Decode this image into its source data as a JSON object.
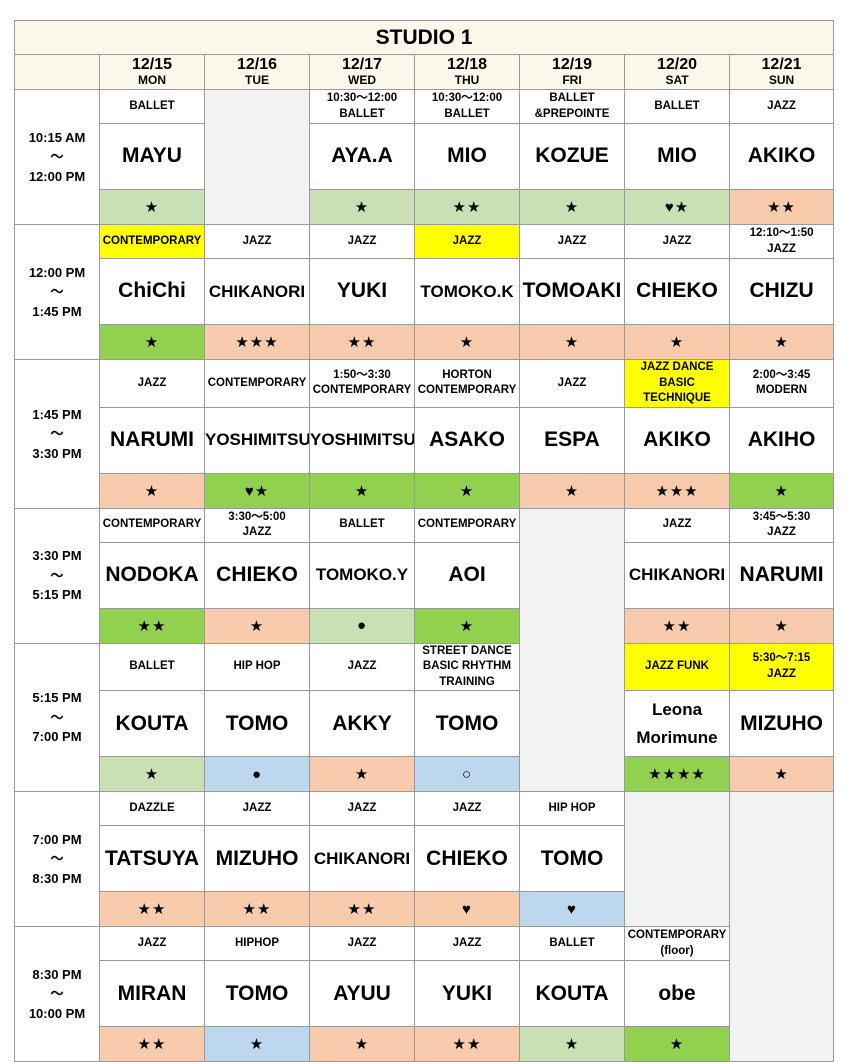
{
  "title": "STUDIO 1",
  "days": [
    {
      "date": "12/15",
      "dow": "MON"
    },
    {
      "date": "12/16",
      "dow": "TUE"
    },
    {
      "date": "12/17",
      "dow": "WED"
    },
    {
      "date": "12/18",
      "dow": "THU"
    },
    {
      "date": "12/19",
      "dow": "FRI"
    },
    {
      "date": "12/20",
      "dow": "SAT"
    },
    {
      "date": "12/21",
      "dow": "SUN"
    }
  ],
  "slots": [
    {
      "time": [
        "10:15 AM",
        "～",
        "12:00 PM"
      ],
      "classes": [
        {
          "genre": [
            "BALLET"
          ],
          "instructor": "MAYU",
          "level": "★",
          "level_color": "g"
        },
        null,
        {
          "genre": [
            "10:30～12:00",
            "BALLET"
          ],
          "instructor": "AYA.A",
          "level": "★",
          "level_color": "g"
        },
        {
          "genre": [
            "10:30～12:00",
            "BALLET"
          ],
          "instructor": "MIO",
          "level": "★★",
          "level_color": "g"
        },
        {
          "genre": [
            "BALLET",
            "&PREPOINTE"
          ],
          "instructor": "KOZUE",
          "level": "★",
          "level_color": "g"
        },
        {
          "genre": [
            "BALLET"
          ],
          "instructor": "MIO",
          "level": "♥★",
          "level_color": "g"
        },
        {
          "genre": [
            "JAZZ"
          ],
          "instructor": "AKIKO",
          "level": "★★",
          "level_color": "p"
        }
      ]
    },
    {
      "time": [
        "12:00 PM",
        "～",
        "1:45 PM"
      ],
      "classes": [
        {
          "genre": [
            "CONTEMPORARY"
          ],
          "genre_highlight": true,
          "instructor": "ChiChi",
          "level": "★",
          "level_color": "G"
        },
        {
          "genre": [
            "JAZZ"
          ],
          "instructor": "CHIKANORI",
          "inst_size": "small",
          "level": "★★★",
          "level_color": "p"
        },
        {
          "genre": [
            "JAZZ"
          ],
          "instructor": "YUKI",
          "level": "★★",
          "level_color": "p"
        },
        {
          "genre": [
            "JAZZ"
          ],
          "genre_highlight": true,
          "instructor": "TOMOKO.K",
          "inst_size": "small",
          "level": "★",
          "level_color": "p"
        },
        {
          "genre": [
            "JAZZ"
          ],
          "instructor": "TOMOAKI",
          "level": "★",
          "level_color": "p"
        },
        {
          "genre": [
            "JAZZ"
          ],
          "instructor": "CHIEKO",
          "level": "★",
          "level_color": "p"
        },
        {
          "genre": [
            "12:10～1:50",
            "JAZZ"
          ],
          "instructor": "CHIZU",
          "level": "★",
          "level_color": "p"
        }
      ]
    },
    {
      "time": [
        "1:45 PM",
        "～",
        "3:30 PM"
      ],
      "classes": [
        {
          "genre": [
            "JAZZ"
          ],
          "instructor": "NARUMI",
          "level": "★",
          "level_color": "p"
        },
        {
          "genre": [
            "CONTEMPORARY"
          ],
          "instructor": "YOSHIMITSU",
          "inst_size": "small",
          "level": "♥★",
          "level_color": "G"
        },
        {
          "genre": [
            "1:50～3:30",
            "CONTEMPORARY"
          ],
          "instructor": "YOSHIMITSU",
          "inst_size": "small",
          "level": "★",
          "level_color": "G"
        },
        {
          "genre": [
            "HORTON",
            "CONTEMPORARY"
          ],
          "instructor": "ASAKO",
          "level": "★",
          "level_color": "G"
        },
        {
          "genre": [
            "JAZZ"
          ],
          "instructor": "ESPA",
          "level": "★",
          "level_color": "p"
        },
        {
          "genre": [
            "JAZZ DANCE",
            "BASIC TECHNIQUE"
          ],
          "genre_highlight": true,
          "instructor": "AKIKO",
          "level": "★★★",
          "level_color": "p"
        },
        {
          "genre": [
            "2:00～3:45",
            "MODERN"
          ],
          "instructor": "AKIHO",
          "level": "★",
          "level_color": "G"
        }
      ]
    },
    {
      "time": [
        "3:30 PM",
        "～",
        "5:15 PM"
      ],
      "classes": [
        {
          "genre": [
            "CONTEMPORARY"
          ],
          "instructor": "NODOKA",
          "level": "★★",
          "level_color": "G"
        },
        {
          "genre": [
            "3:30～5:00",
            "JAZZ"
          ],
          "instructor": "CHIEKO",
          "level": "★",
          "level_color": "p"
        },
        {
          "genre": [
            "BALLET"
          ],
          "instructor": "TOMOKO.Y",
          "inst_size": "small",
          "level": "●",
          "level_color": "g"
        },
        {
          "genre": [
            "CONTEMPORARY"
          ],
          "instructor": "AOI",
          "level": "★",
          "level_color": "G"
        },
        null,
        {
          "genre": [
            "JAZZ"
          ],
          "instructor": "CHIKANORI",
          "inst_size": "small",
          "level": "★★",
          "level_color": "p"
        },
        {
          "genre": [
            "3:45～5:30",
            "JAZZ"
          ],
          "instructor": "NARUMI",
          "level": "★",
          "level_color": "p"
        }
      ]
    },
    {
      "time": [
        "5:15 PM",
        "～",
        "7:00 PM"
      ],
      "classes": [
        {
          "genre": [
            "BALLET"
          ],
          "instructor": "KOUTA",
          "level": "★",
          "level_color": "g"
        },
        {
          "genre": [
            "HIP HOP"
          ],
          "instructor": "TOMO",
          "level": "●",
          "level_color": "b"
        },
        {
          "genre": [
            "JAZZ"
          ],
          "instructor": "AKKY",
          "level": "★",
          "level_color": "p"
        },
        {
          "genre": [
            "STREET DANCE",
            "BASIC RHYTHM",
            "TRAINING"
          ],
          "instructor": "TOMO",
          "level": "○",
          "level_color": "b"
        },
        null,
        {
          "genre": [
            "JAZZ FUNK"
          ],
          "genre_highlight": true,
          "instructor_lines": [
            "Leona",
            "Morimune"
          ],
          "level": "★★★★",
          "level_color": "G"
        },
        {
          "genre": [
            "5:30～7:15",
            "JAZZ"
          ],
          "genre_highlight": true,
          "instructor": "MIZUHO",
          "level": "★",
          "level_color": "p"
        }
      ]
    },
    {
      "time": [
        "7:00 PM",
        "～",
        "8:30 PM"
      ],
      "classes": [
        {
          "genre": [
            "DAZZLE"
          ],
          "instructor": "TATSUYA",
          "level": "★★",
          "level_color": "p"
        },
        {
          "genre": [
            "JAZZ"
          ],
          "instructor": "MIZUHO",
          "level": "★★",
          "level_color": "p"
        },
        {
          "genre": [
            "JAZZ"
          ],
          "instructor": "CHIKANORI",
          "inst_size": "small",
          "level": "★★",
          "level_color": "p"
        },
        {
          "genre": [
            "JAZZ"
          ],
          "instructor": "CHIEKO",
          "level": "♥",
          "level_color": "p"
        },
        {
          "genre": [
            "HIP HOP"
          ],
          "instructor": "TOMO",
          "level": "♥",
          "level_color": "b"
        },
        null,
        null
      ]
    },
    {
      "time": [
        "8:30 PM",
        "～",
        "10:00 PM"
      ],
      "classes": [
        {
          "genre": [
            "JAZZ"
          ],
          "instructor": "MIRAN",
          "level": "★★",
          "level_color": "p"
        },
        {
          "genre": [
            "HIPHOP"
          ],
          "instructor": "TOMO",
          "level": "★",
          "level_color": "b"
        },
        {
          "genre": [
            "JAZZ"
          ],
          "instructor": "AYUU",
          "level": "★",
          "level_color": "p"
        },
        {
          "genre": [
            "JAZZ"
          ],
          "instructor": "YUKI",
          "level": "★★",
          "level_color": "p"
        },
        {
          "genre": [
            "BALLET"
          ],
          "instructor": "KOUTA",
          "level": "★",
          "level_color": "g"
        },
        {
          "genre": [
            "CONTEMPORARY",
            "(floor)"
          ],
          "instructor": "obe",
          "level": "★",
          "level_color": "G"
        },
        null
      ]
    }
  ]
}
